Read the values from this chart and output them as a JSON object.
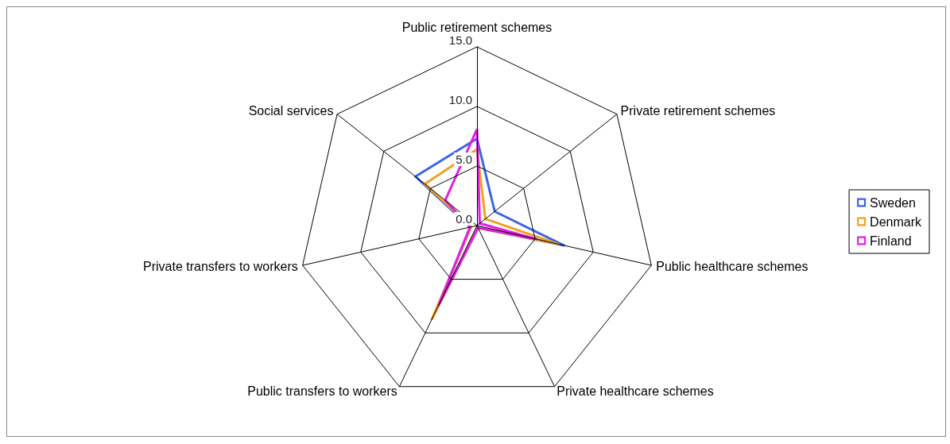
{
  "chart_data": {
    "type": "radar",
    "categories": [
      "Public retirement schemes",
      "Private retirement schemes",
      "Public healthcare schemes",
      "Private healthcare schemes",
      "Public transfers to workers",
      "Private transfers to workers",
      "Social services"
    ],
    "series": [
      {
        "name": "Sweden",
        "color": "#3c64e6",
        "values": [
          7.3,
          1.9,
          7.5,
          0.2,
          7.3,
          0.6,
          6.6
        ]
      },
      {
        "name": "Denmark",
        "color": "#f0a020",
        "values": [
          6.4,
          0.9,
          7.0,
          0.2,
          8.7,
          0.5,
          5.6
        ]
      },
      {
        "name": "Finland",
        "color": "#e020e0",
        "values": [
          8.1,
          0.3,
          5.1,
          0.2,
          7.4,
          0.6,
          3.4
        ]
      }
    ],
    "ylim": [
      0,
      15
    ],
    "yticks": [
      {
        "value": 0,
        "label": "0.0"
      },
      {
        "value": 5,
        "label": "5.0"
      },
      {
        "value": 10,
        "label": "10.0"
      },
      {
        "value": 15,
        "label": "15.0"
      }
    ],
    "legend": "right",
    "line_style": "solid",
    "marker": "none"
  }
}
